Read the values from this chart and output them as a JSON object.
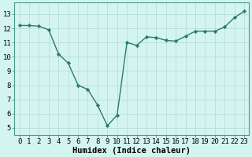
{
  "x": [
    0,
    1,
    2,
    3,
    4,
    5,
    6,
    7,
    8,
    9,
    10,
    11,
    12,
    13,
    14,
    15,
    16,
    17,
    18,
    19,
    20,
    21,
    22,
    23
  ],
  "y": [
    12.2,
    12.2,
    12.15,
    11.9,
    10.2,
    9.55,
    8.0,
    7.7,
    6.6,
    5.15,
    5.9,
    11.0,
    10.8,
    11.4,
    11.35,
    11.15,
    11.1,
    11.45,
    11.8,
    11.8,
    11.8,
    12.1,
    12.75,
    13.2
  ],
  "line_color": "#2d7a6e",
  "marker": "D",
  "marker_size": 2.2,
  "bg_color": "#d4f5ef",
  "grid_color": "#b8ddd8",
  "xlabel": "Humidex (Indice chaleur)",
  "ylim": [
    4.5,
    13.8
  ],
  "xlim": [
    -0.5,
    23.5
  ],
  "yticks": [
    5,
    6,
    7,
    8,
    9,
    10,
    11,
    12,
    13
  ],
  "xticks": [
    0,
    1,
    2,
    3,
    4,
    5,
    6,
    7,
    8,
    9,
    10,
    11,
    12,
    13,
    14,
    15,
    16,
    17,
    18,
    19,
    20,
    21,
    22,
    23
  ],
  "xlabel_fontsize": 7.5,
  "tick_fontsize": 6.5,
  "linewidth": 1.0
}
